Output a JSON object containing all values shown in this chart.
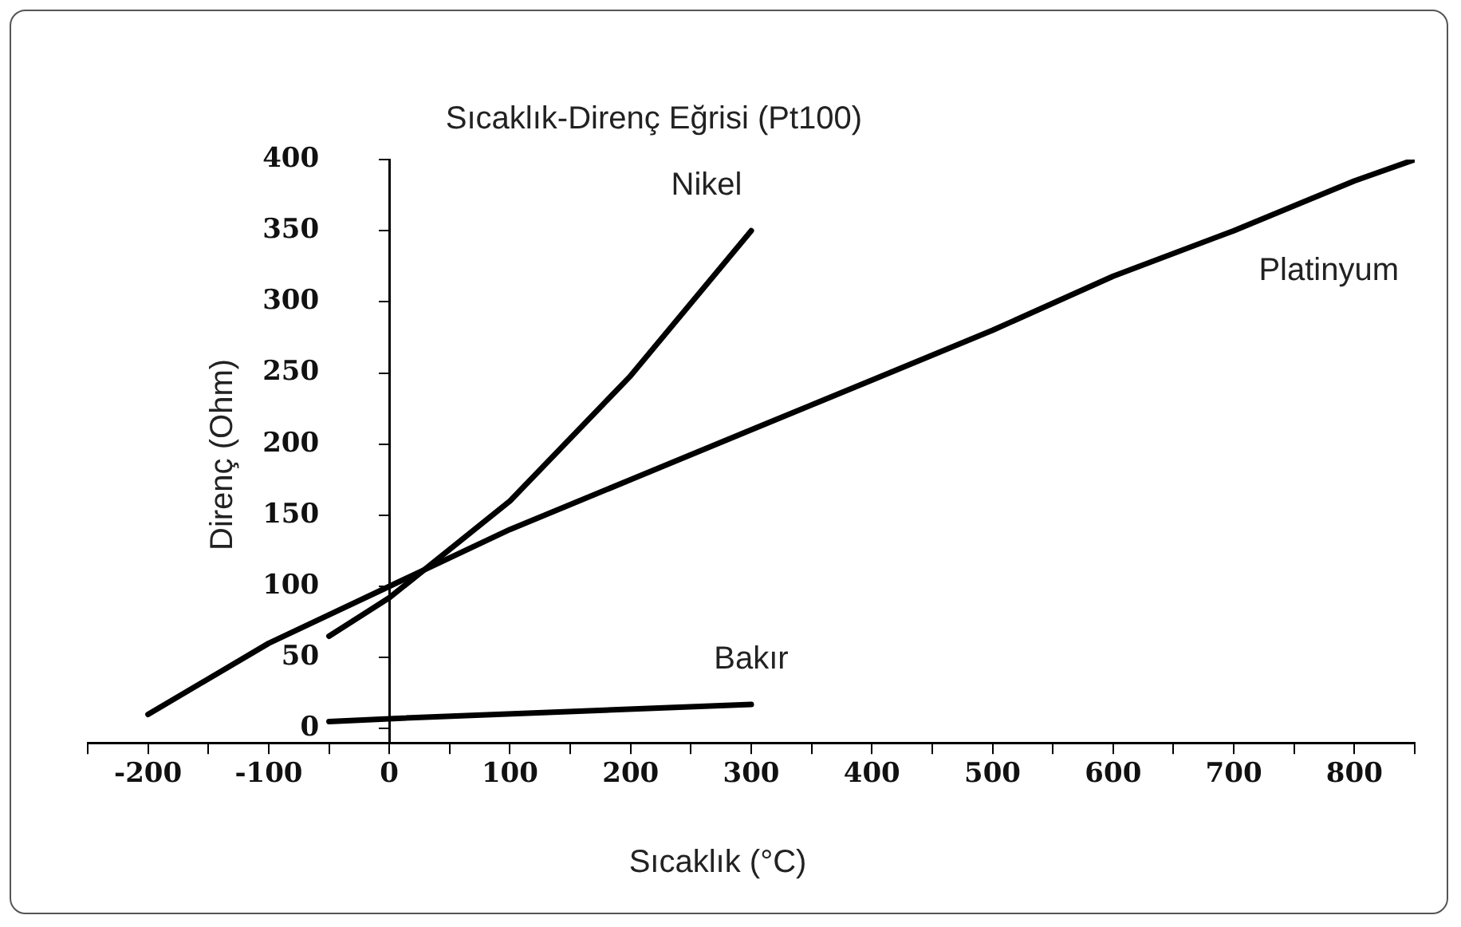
{
  "chart_data": {
    "type": "line",
    "title": "Sıcaklık-Direnç Eğrisi (Pt100)",
    "xlabel": "Sıcaklık (°C)",
    "ylabel": "Direnç (Ohm)",
    "xlim": [
      -250,
      850
    ],
    "xticks": [
      {
        "value": -250,
        "label": null
      },
      -200,
      {
        "value": -150,
        "label": null
      },
      -100,
      {
        "value": -50,
        "label": null
      },
      0,
      {
        "value": 50,
        "label": null
      },
      100,
      {
        "value": 150,
        "label": null
      },
      200,
      {
        "value": 250,
        "label": null
      },
      300,
      {
        "value": 350,
        "label": null
      },
      400,
      {
        "value": 450,
        "label": null
      },
      500,
      {
        "value": 550,
        "label": null
      },
      600,
      {
        "value": 650,
        "label": null
      },
      700,
      {
        "value": 750,
        "label": null
      },
      800,
      {
        "value": 850,
        "label": null
      }
    ],
    "ylim": [
      -10,
      400
    ],
    "yticks": [
      0,
      50,
      100,
      150,
      200,
      250,
      300,
      350,
      400
    ],
    "grid": false,
    "legend": false,
    "marker": "none",
    "line_style": "solid",
    "series": [
      {
        "name": "Platinyum",
        "color": "#000000",
        "x": [
          -200,
          -100,
          0,
          100,
          200,
          300,
          400,
          500,
          600,
          700,
          800,
          850
        ],
        "values": [
          10,
          60,
          100,
          140,
          175,
          210,
          245,
          280,
          318,
          350,
          385,
          400
        ]
      },
      {
        "name": "Nikel",
        "color": "#000000",
        "x": [
          -50,
          0,
          100,
          200,
          300
        ],
        "values": [
          65,
          92,
          160,
          248,
          350
        ]
      },
      {
        "name": "Bakır",
        "color": "#000000",
        "x": [
          -50,
          0,
          300
        ],
        "values": [
          5,
          7,
          17
        ]
      }
    ]
  }
}
